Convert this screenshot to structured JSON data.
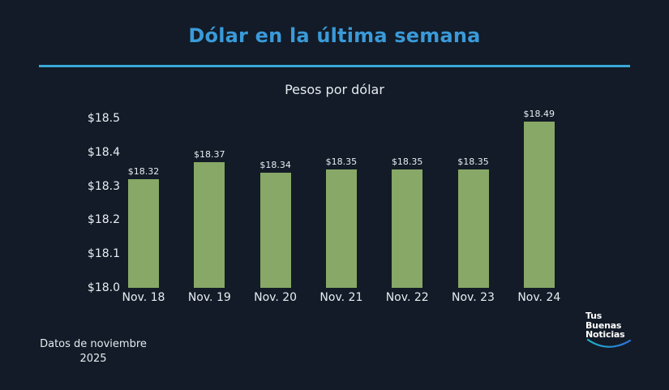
{
  "header": {
    "title": "Dólar en la última semana",
    "title_color": "#3a9ad9",
    "rule_color": "#3aa8d8"
  },
  "footnote": {
    "line1": "Datos de noviembre",
    "line2": "2025"
  },
  "logo": {
    "line1": "Tus",
    "line2": "Buenas",
    "line3": "Noticias"
  },
  "colors": {
    "background": "#121b27",
    "bar": "#87a866",
    "text": "#e8edf2"
  },
  "chart_data": {
    "type": "bar",
    "title": "Pesos por dólar",
    "xlabel": "",
    "ylabel": "",
    "categories": [
      "Nov. 18",
      "Nov. 19",
      "Nov. 20",
      "Nov. 21",
      "Nov. 22",
      "Nov. 23",
      "Nov. 24"
    ],
    "values": [
      18.32,
      18.37,
      18.34,
      18.35,
      18.35,
      18.35,
      18.49
    ],
    "value_labels": [
      "$18.32",
      "$18.37",
      "$18.34",
      "$18.35",
      "$18.35",
      "$18.35",
      "$18.49"
    ],
    "ylim": [
      18.0,
      18.5
    ],
    "yticks": [
      18.0,
      18.1,
      18.2,
      18.3,
      18.4,
      18.5
    ],
    "ytick_labels": [
      "$18.0",
      "$18.1",
      "$18.2",
      "$18.3",
      "$18.4",
      "$18.5"
    ],
    "grid": false,
    "legend": null
  }
}
